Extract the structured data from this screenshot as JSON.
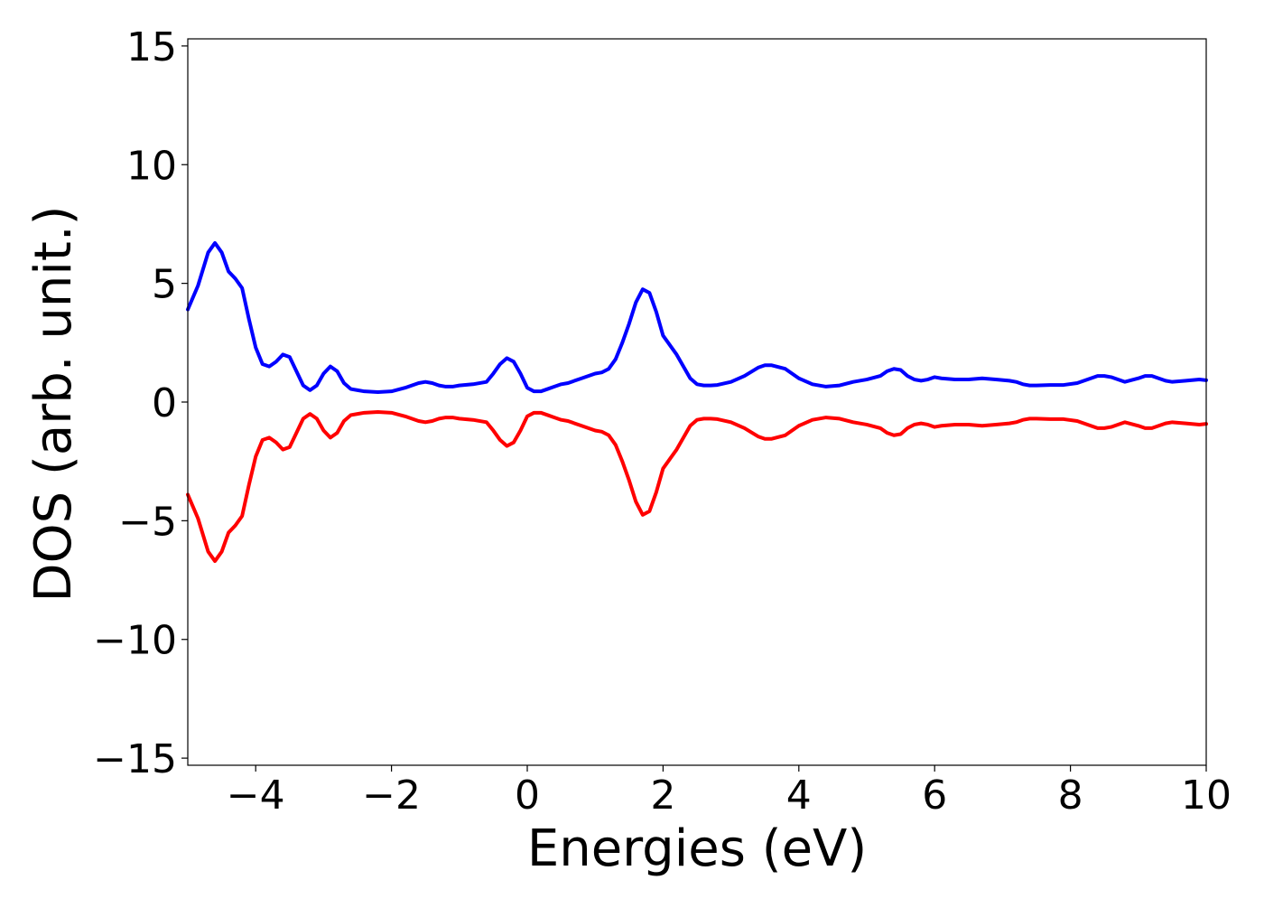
{
  "chart_data": {
    "type": "line",
    "xlabel": "Energies (eV)",
    "ylabel": "DOS (arb. unit.)",
    "xlim": [
      -5,
      10
    ],
    "ylim": [
      -15.3,
      15.3
    ],
    "xticks": [
      -4,
      -2,
      0,
      2,
      4,
      6,
      8,
      10
    ],
    "yticks": [
      -15,
      -10,
      -5,
      0,
      5,
      10,
      15
    ],
    "grid": false,
    "legend": "none",
    "series": [
      {
        "color": "#0000ff",
        "x": [
          -5.0,
          -4.85,
          -4.7,
          -4.6,
          -4.5,
          -4.4,
          -4.3,
          -4.2,
          -4.1,
          -4.0,
          -3.9,
          -3.8,
          -3.7,
          -3.6,
          -3.5,
          -3.4,
          -3.3,
          -3.2,
          -3.1,
          -3.0,
          -2.9,
          -2.8,
          -2.7,
          -2.6,
          -2.5,
          -2.4,
          -2.2,
          -2.0,
          -1.8,
          -1.6,
          -1.5,
          -1.4,
          -1.3,
          -1.2,
          -1.1,
          -1.0,
          -0.8,
          -0.6,
          -0.5,
          -0.4,
          -0.3,
          -0.2,
          -0.1,
          0.0,
          0.1,
          0.2,
          0.3,
          0.4,
          0.5,
          0.6,
          0.8,
          0.9,
          1.0,
          1.1,
          1.2,
          1.3,
          1.4,
          1.5,
          1.6,
          1.7,
          1.8,
          1.9,
          2.0,
          2.1,
          2.2,
          2.3,
          2.4,
          2.5,
          2.6,
          2.7,
          2.8,
          3.0,
          3.2,
          3.4,
          3.5,
          3.6,
          3.8,
          4.0,
          4.2,
          4.4,
          4.6,
          4.8,
          5.0,
          5.2,
          5.3,
          5.4,
          5.5,
          5.6,
          5.7,
          5.8,
          5.9,
          6.0,
          6.1,
          6.3,
          6.5,
          6.7,
          6.9,
          7.1,
          7.2,
          7.3,
          7.4,
          7.5,
          7.7,
          7.9,
          8.1,
          8.3,
          8.4,
          8.5,
          8.6,
          8.7,
          8.8,
          9.0,
          9.1,
          9.2,
          9.3,
          9.4,
          9.5,
          9.7,
          9.9,
          10.0
        ],
        "y": [
          3.9,
          4.9,
          6.3,
          6.7,
          6.3,
          5.5,
          5.2,
          4.8,
          3.5,
          2.3,
          1.6,
          1.5,
          1.7,
          2.0,
          1.9,
          1.3,
          0.7,
          0.5,
          0.7,
          1.2,
          1.5,
          1.3,
          0.8,
          0.55,
          0.5,
          0.45,
          0.42,
          0.45,
          0.6,
          0.8,
          0.85,
          0.8,
          0.7,
          0.65,
          0.65,
          0.7,
          0.75,
          0.85,
          1.2,
          1.6,
          1.85,
          1.7,
          1.2,
          0.6,
          0.45,
          0.45,
          0.55,
          0.65,
          0.75,
          0.8,
          1.0,
          1.1,
          1.2,
          1.25,
          1.4,
          1.8,
          2.5,
          3.3,
          4.2,
          4.75,
          4.6,
          3.8,
          2.8,
          2.4,
          2.0,
          1.5,
          1.0,
          0.75,
          0.7,
          0.7,
          0.72,
          0.85,
          1.1,
          1.45,
          1.55,
          1.55,
          1.4,
          1.0,
          0.75,
          0.65,
          0.7,
          0.85,
          0.95,
          1.1,
          1.3,
          1.4,
          1.35,
          1.1,
          0.95,
          0.9,
          0.95,
          1.05,
          1.0,
          0.95,
          0.95,
          1.0,
          0.95,
          0.9,
          0.85,
          0.75,
          0.7,
          0.7,
          0.72,
          0.72,
          0.8,
          1.0,
          1.1,
          1.1,
          1.05,
          0.95,
          0.85,
          1.0,
          1.1,
          1.1,
          1.0,
          0.9,
          0.85,
          0.9,
          0.95,
          0.92
        ]
      },
      {
        "color": "#ff0000",
        "x": [
          -5.0,
          -4.85,
          -4.7,
          -4.6,
          -4.5,
          -4.4,
          -4.3,
          -4.2,
          -4.1,
          -4.0,
          -3.9,
          -3.8,
          -3.7,
          -3.6,
          -3.5,
          -3.4,
          -3.3,
          -3.2,
          -3.1,
          -3.0,
          -2.9,
          -2.8,
          -2.7,
          -2.6,
          -2.5,
          -2.4,
          -2.2,
          -2.0,
          -1.8,
          -1.6,
          -1.5,
          -1.4,
          -1.3,
          -1.2,
          -1.1,
          -1.0,
          -0.8,
          -0.6,
          -0.5,
          -0.4,
          -0.3,
          -0.2,
          -0.1,
          0.0,
          0.1,
          0.2,
          0.3,
          0.4,
          0.5,
          0.6,
          0.8,
          0.9,
          1.0,
          1.1,
          1.2,
          1.3,
          1.4,
          1.5,
          1.6,
          1.7,
          1.8,
          1.9,
          2.0,
          2.1,
          2.2,
          2.3,
          2.4,
          2.5,
          2.6,
          2.7,
          2.8,
          3.0,
          3.2,
          3.4,
          3.5,
          3.6,
          3.8,
          4.0,
          4.2,
          4.4,
          4.6,
          4.8,
          5.0,
          5.2,
          5.3,
          5.4,
          5.5,
          5.6,
          5.7,
          5.8,
          5.9,
          6.0,
          6.1,
          6.3,
          6.5,
          6.7,
          6.9,
          7.1,
          7.2,
          7.3,
          7.4,
          7.5,
          7.7,
          7.9,
          8.1,
          8.3,
          8.4,
          8.5,
          8.6,
          8.7,
          8.8,
          9.0,
          9.1,
          9.2,
          9.3,
          9.4,
          9.5,
          9.7,
          9.9,
          10.0
        ],
        "y": [
          -3.9,
          -4.9,
          -6.3,
          -6.7,
          -6.3,
          -5.5,
          -5.2,
          -4.8,
          -3.5,
          -2.3,
          -1.6,
          -1.5,
          -1.7,
          -2.0,
          -1.9,
          -1.3,
          -0.7,
          -0.5,
          -0.7,
          -1.2,
          -1.5,
          -1.3,
          -0.8,
          -0.55,
          -0.5,
          -0.45,
          -0.42,
          -0.45,
          -0.6,
          -0.8,
          -0.85,
          -0.8,
          -0.7,
          -0.65,
          -0.65,
          -0.7,
          -0.75,
          -0.85,
          -1.2,
          -1.6,
          -1.85,
          -1.7,
          -1.2,
          -0.6,
          -0.45,
          -0.45,
          -0.55,
          -0.65,
          -0.75,
          -0.8,
          -1.0,
          -1.1,
          -1.2,
          -1.25,
          -1.4,
          -1.8,
          -2.5,
          -3.3,
          -4.2,
          -4.75,
          -4.6,
          -3.8,
          -2.8,
          -2.4,
          -2.0,
          -1.5,
          -1.0,
          -0.75,
          -0.7,
          -0.7,
          -0.72,
          -0.85,
          -1.1,
          -1.45,
          -1.55,
          -1.55,
          -1.4,
          -1.0,
          -0.75,
          -0.65,
          -0.7,
          -0.85,
          -0.95,
          -1.1,
          -1.3,
          -1.4,
          -1.35,
          -1.1,
          -0.95,
          -0.9,
          -0.95,
          -1.05,
          -1.0,
          -0.95,
          -0.95,
          -1.0,
          -0.95,
          -0.9,
          -0.85,
          -0.75,
          -0.7,
          -0.7,
          -0.72,
          -0.72,
          -0.8,
          -1.0,
          -1.1,
          -1.1,
          -1.05,
          -0.95,
          -0.85,
          -1.0,
          -1.1,
          -1.1,
          -1.0,
          -0.9,
          -0.85,
          -0.9,
          -0.95,
          -0.92
        ]
      }
    ]
  }
}
